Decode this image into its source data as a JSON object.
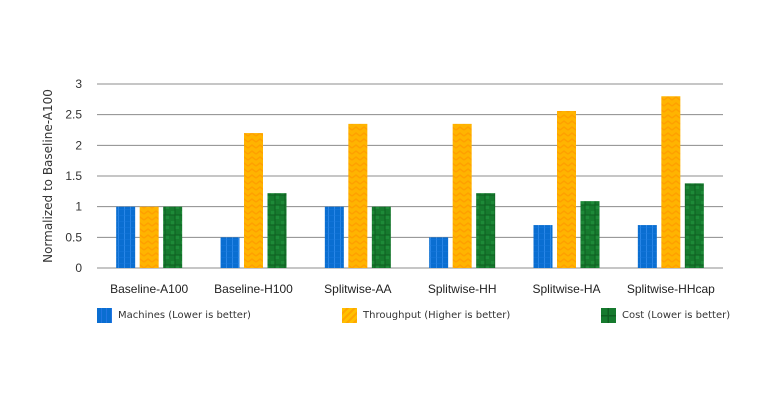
{
  "chart_data": {
    "type": "bar",
    "title": "",
    "xlabel": "",
    "ylabel": "Normalized to Baseline-A100",
    "ylim": [
      0,
      3
    ],
    "yticks": [
      "0",
      "0.5",
      "1",
      "1.5",
      "2",
      "2.5",
      "3"
    ],
    "grid": true,
    "legend_position": "bottom",
    "categories": [
      "Baseline-A100",
      "Baseline-H100",
      "Splitwise-AA",
      "Splitwise-HH",
      "Splitwise-HA",
      "Splitwise-HHcap"
    ],
    "series": [
      {
        "name": "Machines (Lower is better)",
        "color": "#0a6ed1",
        "values": [
          1,
          0.5,
          1,
          0.5,
          0.7,
          0.7
        ]
      },
      {
        "name": "Throughput (Higher is better)",
        "color": "#ffb000",
        "values": [
          1,
          2.2,
          2.35,
          2.35,
          2.56,
          2.8
        ]
      },
      {
        "name": "Cost (Lower is better)",
        "color": "#167a2e",
        "values": [
          1,
          1.22,
          1,
          1.22,
          1.09,
          1.38
        ]
      }
    ]
  },
  "legend": [
    {
      "label": "Machines (Lower is better)"
    },
    {
      "label": "Throughput (Higher is better)"
    },
    {
      "label": "Cost (Lower is better)"
    }
  ]
}
